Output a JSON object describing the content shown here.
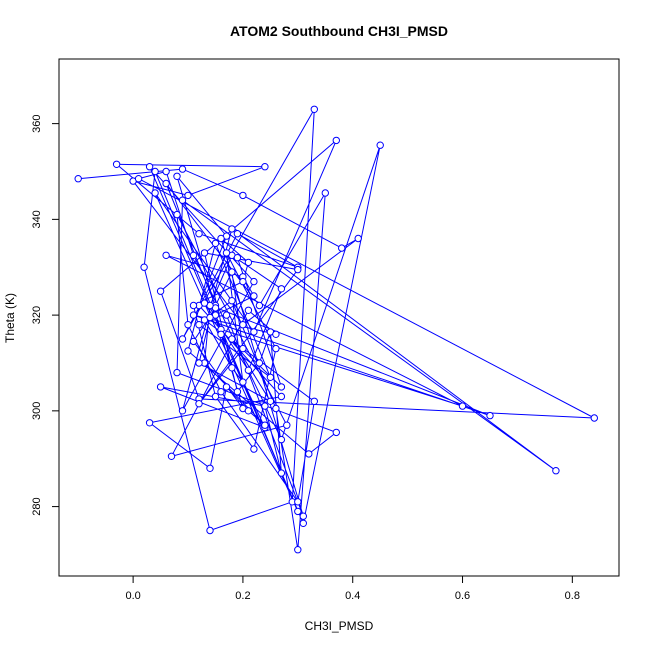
{
  "chart_data": {
    "type": "scatter",
    "title": "ATOM2 Southbound CH3I_PMSD",
    "xlabel": "CH3I_PMSD",
    "ylabel": "Theta (K)",
    "xlim": [
      -0.135,
      0.885
    ],
    "ylim": [
      265.5,
      373.5
    ],
    "xticks": [
      0.0,
      0.2,
      0.4,
      0.6,
      0.8
    ],
    "xtick_labels": [
      "0.0",
      "0.2",
      "0.4",
      "0.6",
      "0.8"
    ],
    "yticks": [
      280,
      300,
      320,
      340,
      360
    ],
    "ytick_labels": [
      "280",
      "300",
      "320",
      "340",
      "360"
    ],
    "grid": false,
    "line_connected": true,
    "marker": "open-circle",
    "color": "#0000ff",
    "series": [
      {
        "x": [
          -0.1,
          0.09,
          0.2,
          0.38,
          0.41,
          0.2,
          0.0,
          0.1,
          0.24,
          -0.03,
          0.12,
          0.3,
          0.19,
          0.09,
          0.33,
          0.29,
          0.14,
          0.02,
          0.04,
          0.16,
          0.6,
          0.06,
          0.2,
          0.22,
          0.15,
          0.3,
          0.04,
          0.22,
          0.37,
          0.05,
          0.12,
          0.84,
          0.01,
          0.06,
          0.11,
          0.27,
          0.45,
          0.31,
          0.03,
          0.22,
          0.09,
          0.18,
          0.77,
          0.09,
          0.08,
          0.37,
          0.32,
          0.1,
          0.15,
          0.25,
          0.12,
          0.18,
          0.26,
          0.3,
          0.35,
          0.23,
          0.06,
          0.15,
          0.18,
          0.2,
          0.12,
          0.3,
          0.13,
          0.19,
          0.23,
          0.25,
          0.27,
          0.24,
          0.05,
          0.24,
          0.16,
          0.2,
          0.11,
          0.15,
          0.08,
          0.17,
          0.12,
          0.27,
          0.03,
          0.14,
          0.17,
          0.21,
          0.24,
          0.13,
          0.14,
          0.18,
          0.27,
          0.21,
          0.13,
          0.65,
          0.11,
          0.26,
          0.21,
          0.07,
          0.28,
          0.08,
          0.1,
          0.16,
          0.3,
          0.33,
          0.13,
          0.18,
          0.2,
          0.17,
          0.26,
          0.22,
          0.15,
          0.11,
          0.2,
          0.21,
          0.16,
          0.31,
          0.17,
          0.14,
          0.12,
          0.25,
          0.18,
          0.27,
          0.19
        ],
        "y": [
          348.5,
          350.5,
          345.0,
          334.0,
          336.0,
          318.0,
          348.0,
          345.0,
          351.0,
          351.5,
          337.0,
          330.0,
          337.0,
          315.0,
          363.0,
          281.0,
          275.0,
          330.0,
          350.0,
          317.0,
          301.0,
          332.5,
          328.0,
          324.0,
          320.0,
          279.0,
          345.5,
          316.5,
          356.5,
          325.0,
          302.5,
          298.5,
          348.5,
          350.0,
          332.5,
          294.0,
          355.5,
          276.5,
          351.0,
          327.0,
          300.0,
          338.0,
          287.5,
          344.0,
          308.0,
          295.5,
          291.0,
          312.5,
          335.0,
          307.0,
          318.0,
          323.0,
          300.5,
          271.0,
          345.5,
          322.0,
          347.5,
          322.0,
          329.0,
          313.0,
          301.5,
          329.5,
          333.0,
          304.0,
          310.0,
          316.5,
          287.0,
          301.0,
          305.0,
          296.5,
          316.0,
          300.5,
          314.5,
          321.5,
          349.0,
          336.5,
          322.0,
          303.0,
          297.5,
          288.0,
          305.0,
          300.0,
          297.0,
          310.0,
          322.0,
          332.5,
          325.5,
          308.5,
          322.5,
          299.0,
          320.0,
          316.0,
          321.0,
          290.5,
          297.0,
          341.0,
          318.0,
          304.0,
          281.0,
          302.0,
          319.0,
          309.0,
          306.0,
          333.0,
          313.0,
          292.0,
          303.0,
          322.0,
          327.0,
          331.0,
          336.0,
          278.0,
          320.0,
          319.5,
          310.0,
          302.0,
          315.0,
          305.0,
          332.0
        ]
      }
    ]
  }
}
